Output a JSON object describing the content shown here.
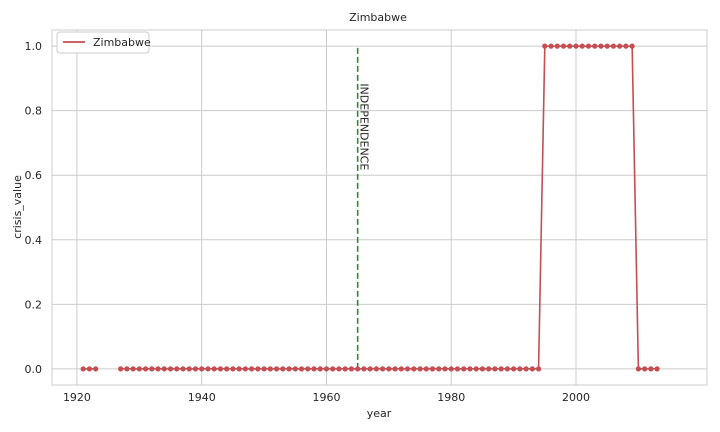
{
  "chart_data": {
    "type": "line",
    "title": "Zimbabwe",
    "xlabel": "year",
    "ylabel": "crisis_value",
    "xlim": [
      1916,
      2021
    ],
    "ylim": [
      -0.05,
      1.05
    ],
    "xticks": [
      1920,
      1940,
      1960,
      1980,
      2000
    ],
    "yticks": [
      0.0,
      0.2,
      0.4,
      0.6,
      0.8,
      1.0
    ],
    "x_tick_labels": [
      "1920",
      "1940",
      "1960",
      "1980",
      "2000"
    ],
    "y_tick_labels": [
      "0.0",
      "0.2",
      "0.4",
      "0.6",
      "0.8",
      "1.0"
    ],
    "grid": true,
    "legend_position": "top-left",
    "series": [
      {
        "name": "Zimbabwe",
        "color": "#c44e52",
        "marker": "circle",
        "segments": [
          {
            "x": [
              1921,
              1922,
              1923
            ],
            "y": [
              0,
              0,
              0
            ]
          },
          {
            "x": [
              1927,
              1928,
              1929,
              1930,
              1931,
              1932,
              1933,
              1934,
              1935,
              1936,
              1937,
              1938,
              1939,
              1940,
              1941,
              1942,
              1943,
              1944,
              1945,
              1946,
              1947,
              1948,
              1949,
              1950,
              1951,
              1952,
              1953,
              1954,
              1955,
              1956,
              1957,
              1958,
              1959,
              1960,
              1961,
              1962,
              1963,
              1964,
              1965,
              1966,
              1967,
              1968,
              1969,
              1970,
              1971,
              1972,
              1973,
              1974,
              1975,
              1976,
              1977,
              1978,
              1979,
              1980,
              1981,
              1982,
              1983,
              1984,
              1985,
              1986,
              1987,
              1988,
              1989,
              1990,
              1991,
              1992,
              1993,
              1994,
              1995,
              1996,
              1997,
              1998,
              1999,
              2000,
              2001,
              2002,
              2003,
              2004,
              2005,
              2006,
              2007,
              2008,
              2009,
              2010,
              2011,
              2012,
              2013
            ],
            "y": [
              0,
              0,
              0,
              0,
              0,
              0,
              0,
              0,
              0,
              0,
              0,
              0,
              0,
              0,
              0,
              0,
              0,
              0,
              0,
              0,
              0,
              0,
              0,
              0,
              0,
              0,
              0,
              0,
              0,
              0,
              0,
              0,
              0,
              0,
              0,
              0,
              0,
              0,
              0,
              0,
              0,
              0,
              0,
              0,
              0,
              0,
              0,
              0,
              0,
              0,
              0,
              0,
              0,
              0,
              0,
              0,
              0,
              0,
              0,
              0,
              0,
              0,
              0,
              0,
              0,
              0,
              0,
              0,
              1,
              1,
              1,
              1,
              1,
              1,
              1,
              1,
              1,
              1,
              1,
              1,
              1,
              1,
              1,
              0,
              0,
              0,
              0
            ]
          }
        ]
      }
    ],
    "annotations": [
      {
        "type": "vertical-line",
        "x": 1965,
        "y_range": [
          0,
          1
        ],
        "color": "#2e8b2e",
        "style": "dashed",
        "label": "INDEPENDENCE",
        "label_y": 0.75
      }
    ]
  }
}
